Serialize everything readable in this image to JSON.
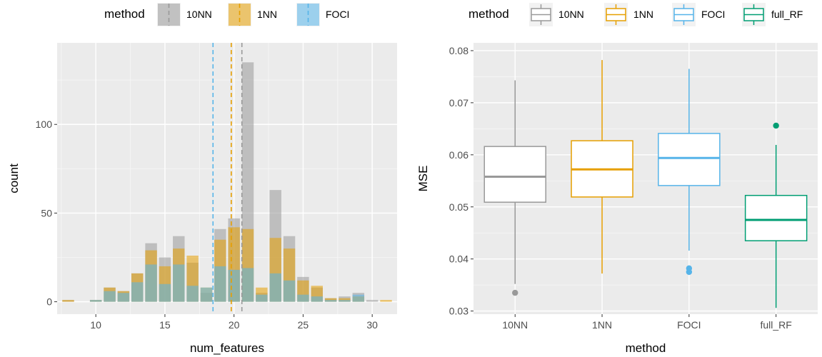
{
  "charts": {
    "left": {
      "type": "bar",
      "xlabel": "num_features",
      "ylabel": "count",
      "xlim": [
        7.2,
        31.8
      ],
      "ylim": [
        -7,
        146
      ],
      "xticks": [
        10,
        15,
        20,
        25,
        30
      ],
      "yticks": [
        0,
        50,
        100
      ],
      "legend_title": "method",
      "legend_placement": "top",
      "stacking": "overlaid-transparent",
      "binwidth": 0.85,
      "series": [
        {
          "name": "10NN",
          "color": "#999999",
          "x": [
            8,
            10,
            11,
            12,
            13,
            14,
            15,
            16,
            17,
            18,
            19,
            20,
            21,
            22,
            23,
            24,
            25,
            26,
            27,
            28,
            29,
            30
          ],
          "values": [
            1,
            1,
            8,
            6,
            16,
            33,
            25,
            37,
            22,
            5,
            41,
            47,
            135,
            5,
            63,
            37,
            14,
            8,
            2,
            3,
            5,
            1
          ]
        },
        {
          "name": "1NN",
          "color": "#E69F00",
          "x": [
            8,
            10,
            11,
            12,
            13,
            14,
            15,
            16,
            17,
            18,
            19,
            20,
            21,
            22,
            23,
            24,
            25,
            26,
            27,
            28,
            29,
            30,
            31
          ],
          "values": [
            1,
            1,
            8,
            6,
            16,
            29,
            20,
            30,
            26,
            8,
            35,
            42,
            41,
            8,
            36,
            30,
            12,
            9,
            2,
            2,
            3,
            0,
            1
          ]
        },
        {
          "name": "FOCI",
          "color": "#56B4E9",
          "x": [
            8,
            10,
            11,
            12,
            13,
            14,
            15,
            16,
            17,
            18,
            19,
            20,
            21,
            22,
            23,
            24,
            25,
            26,
            27,
            28,
            29,
            30,
            31
          ],
          "values": [
            0,
            1,
            6,
            5,
            11,
            21,
            10,
            21,
            9,
            8,
            20,
            18,
            19,
            4,
            16,
            12,
            4,
            3,
            1,
            1,
            4,
            0,
            0
          ]
        }
      ],
      "mean_lines": [
        {
          "name": "10NN",
          "x": 20.57,
          "color": "#999999"
        },
        {
          "name": "1NN",
          "x": 19.8,
          "color": "#E69F00"
        },
        {
          "name": "FOCI",
          "x": 18.48,
          "color": "#56B4E9"
        }
      ]
    },
    "right": {
      "type": "box",
      "xlabel": "method",
      "ylabel": "MSE",
      "ylim": [
        0.0294,
        0.0815
      ],
      "yticks": [
        "0.03",
        "0.04",
        "0.05",
        "0.06",
        "0.07",
        "0.08"
      ],
      "legend_title": "method",
      "legend_placement": "top",
      "categories": [
        "10NN",
        "1NN",
        "FOCI",
        "full_RF"
      ],
      "boxes": [
        {
          "name": "10NN",
          "color": "#999999",
          "lower_whisker": 0.0352,
          "q1": 0.0509,
          "median": 0.0558,
          "q3": 0.0616,
          "upper_whisker": 0.0743,
          "outliers": [
            0.0335
          ]
        },
        {
          "name": "1NN",
          "color": "#E69F00",
          "lower_whisker": 0.0372,
          "q1": 0.0519,
          "median": 0.0572,
          "q3": 0.0627,
          "upper_whisker": 0.0782,
          "outliers": []
        },
        {
          "name": "FOCI",
          "color": "#56B4E9",
          "lower_whisker": 0.0416,
          "q1": 0.0541,
          "median": 0.0594,
          "q3": 0.0641,
          "upper_whisker": 0.0765,
          "outliers": [
            0.0382,
            0.0375
          ]
        },
        {
          "name": "full_RF",
          "color": "#009E73",
          "lower_whisker": 0.0306,
          "q1": 0.0435,
          "median": 0.0475,
          "q3": 0.0522,
          "upper_whisker": 0.0619,
          "outliers": [
            0.0656
          ]
        }
      ]
    }
  }
}
